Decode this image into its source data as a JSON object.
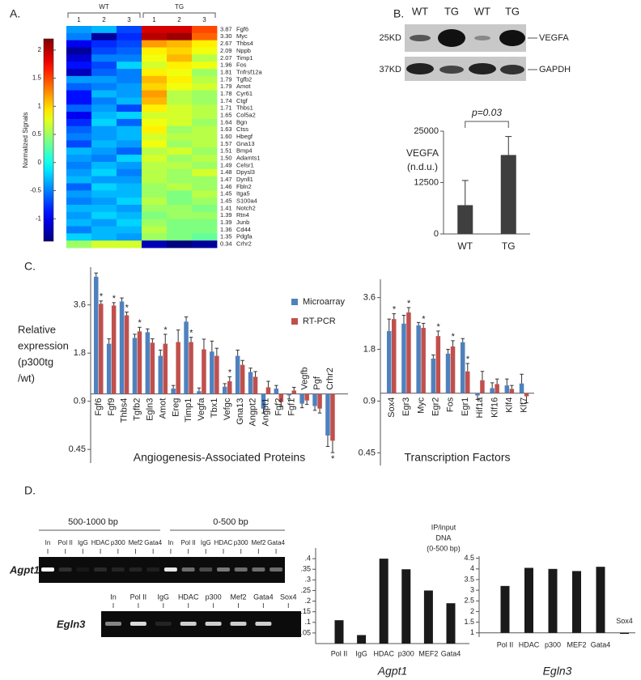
{
  "panel_labels": [
    "A.",
    "B.",
    "C.",
    "D."
  ],
  "heatmap": {
    "groups": [
      "WT",
      "TG"
    ],
    "columns": [
      "1",
      "2",
      "3",
      "1",
      "2",
      "3"
    ],
    "colorbar_label": "Normalized Signals",
    "clim": [
      -1.4,
      2.2
    ],
    "cticks": [
      -1,
      -0.5,
      0,
      0.5,
      1,
      1.5,
      2
    ],
    "colormap": "jet",
    "genes": [
      "Fgf6",
      "Myc",
      "Thbs4",
      "Nppb",
      "Timp1",
      "Fos",
      "Tnfrsf12a",
      "Tgfb2",
      "Amot",
      "Cyr61",
      "Ctgf",
      "Thbs1",
      "Col5a2",
      "Bgn",
      "Ctss",
      "Hbegf",
      "Gna13",
      "Bmp4",
      "Adamts1",
      "Celsr1",
      "Dpysl3",
      "Dynll1",
      "Fbln2",
      "Itga5",
      "S100a4",
      "Notch2",
      "Rtn4",
      "Junb",
      "Cd44",
      "Pdgfa",
      "Crhr2"
    ],
    "fold_changes": [
      "3.87",
      "3.30",
      "2.67",
      "2.09",
      "2.07",
      "1.96",
      "1.81",
      "1.79",
      "1.79",
      "1.78",
      "1.74",
      "1.71",
      "1.65",
      "1.64",
      "1.63",
      "1.60",
      "1.57",
      "1.51",
      "1.50",
      "1.49",
      "1.48",
      "1.47",
      "1.46",
      "1.45",
      "1.45",
      "1.41",
      "1.39",
      "1.39",
      "1.36",
      "1.35",
      "0.34"
    ],
    "values": [
      [
        -0.4,
        -0.3,
        -0.7,
        1.9,
        1.9,
        1.5
      ],
      [
        -0.5,
        -1.3,
        -0.8,
        2.0,
        2.1,
        1.4
      ],
      [
        -1.0,
        -0.8,
        -0.7,
        1.2,
        1.1,
        0.9
      ],
      [
        -1.3,
        -0.7,
        -0.6,
        0.9,
        1.0,
        0.8
      ],
      [
        -1.1,
        -0.5,
        -0.5,
        0.8,
        1.1,
        0.6
      ],
      [
        -0.9,
        -0.7,
        -0.2,
        0.7,
        0.9,
        0.8
      ],
      [
        -1.2,
        -0.6,
        -0.5,
        0.9,
        0.8,
        0.5
      ],
      [
        -0.4,
        -0.4,
        -0.5,
        1.1,
        0.9,
        0.6
      ],
      [
        -0.6,
        -0.5,
        -0.4,
        1.0,
        0.8,
        0.7
      ],
      [
        -0.9,
        -0.3,
        -0.4,
        1.2,
        0.6,
        0.5
      ],
      [
        -0.9,
        -0.5,
        -0.3,
        1.1,
        0.6,
        0.5
      ],
      [
        -0.6,
        -0.4,
        -0.7,
        0.9,
        0.7,
        0.6
      ],
      [
        -1.0,
        -0.3,
        -0.2,
        0.7,
        0.7,
        0.6
      ],
      [
        -0.8,
        -0.2,
        -0.6,
        0.8,
        0.7,
        0.5
      ],
      [
        -0.6,
        -0.4,
        -0.3,
        0.9,
        0.5,
        0.6
      ],
      [
        -0.5,
        -0.4,
        -0.3,
        0.7,
        0.6,
        0.6
      ],
      [
        -0.7,
        -0.3,
        -0.4,
        0.8,
        0.5,
        0.6
      ],
      [
        -0.3,
        -0.4,
        -0.6,
        0.6,
        0.7,
        0.5
      ],
      [
        -0.4,
        -0.5,
        -0.2,
        0.7,
        0.5,
        0.6
      ],
      [
        -0.5,
        -0.3,
        -0.4,
        0.6,
        0.6,
        0.5
      ],
      [
        -0.4,
        -0.2,
        -0.5,
        0.6,
        0.5,
        0.7
      ],
      [
        -0.3,
        -0.4,
        -0.4,
        0.6,
        0.5,
        0.5
      ],
      [
        -0.6,
        -0.2,
        -0.3,
        0.5,
        0.6,
        0.5
      ],
      [
        -0.4,
        -0.3,
        -0.3,
        0.5,
        0.4,
        0.6
      ],
      [
        -0.5,
        -0.4,
        -0.2,
        0.6,
        0.4,
        0.5
      ],
      [
        -0.3,
        -0.3,
        -0.4,
        0.5,
        0.5,
        0.4
      ],
      [
        -0.4,
        -0.2,
        -0.3,
        0.4,
        0.5,
        0.5
      ],
      [
        -0.3,
        -0.4,
        -0.2,
        0.5,
        0.4,
        0.4
      ],
      [
        -0.5,
        -0.3,
        -0.3,
        0.6,
        0.4,
        0.4
      ],
      [
        -0.2,
        -0.3,
        -0.4,
        0.5,
        0.4,
        0.3
      ],
      [
        0.5,
        0.7,
        0.7,
        -1.2,
        -1.4,
        -1.3
      ]
    ]
  },
  "western_blot": {
    "lanes": [
      "WT",
      "TG",
      "WT",
      "TG"
    ],
    "rows": [
      {
        "size": "25KD",
        "protein": "VEGFA"
      },
      {
        "size": "37KD",
        "protein": "GAPDH"
      }
    ]
  },
  "chip_gels": {
    "agpt1": {
      "label": "Agpt1",
      "ranges": [
        "500-1000 bp",
        "0-500 bp"
      ],
      "lanes": [
        "In",
        "Pol II",
        "IgG",
        "HDAC",
        "p300",
        "Mef2",
        "Gata4"
      ]
    },
    "egln3": {
      "label": "Egln3",
      "lanes": [
        "In",
        "Pol II",
        "IgG",
        "HDAC",
        "p300",
        "Mef2",
        "Gata4",
        "Sox4"
      ]
    }
  },
  "chart_data": [
    {
      "type": "bar",
      "y_label": [
        "VEGFA",
        "(n.d.u.)"
      ],
      "categories": [
        "WT",
        "TG"
      ],
      "values": [
        7000,
        19200
      ],
      "errors": [
        6000,
        4500
      ],
      "color": "#3f3f3f",
      "ylim": [
        0,
        25000
      ],
      "yticks": [
        0,
        12500,
        25000
      ],
      "annotation": "p=0.03"
    },
    {
      "type": "bar",
      "log_y": true,
      "y_label": [
        "Relative",
        "expression",
        "(p300tg",
        "/wt)"
      ],
      "x_label": "Angiogenesis-Associated Proteins",
      "legend": "right",
      "categories": [
        "Fgf6",
        "Fgf9",
        "Thbs4",
        "Tgfb2",
        "Egln3",
        "Amot",
        "Ereg",
        "Timp1",
        "Vegfa",
        "Tbx1",
        "Vefgc",
        "Gna13",
        "Angpt2",
        "Angpt1",
        "Fgf2",
        "Fgf1",
        "Vegfb",
        "Pgf",
        "Crhr2"
      ],
      "series": [
        {
          "name": "Microarray",
          "color": "#4f81bd",
          "values": [
            5.4,
            2.06,
            3.78,
            2.24,
            2.43,
            1.73,
            1.08,
            2.83,
            1.04,
            1.84,
            1.11,
            1.73,
            1.37,
            0.81,
            1.08,
            0.98,
            0.87,
            0.84,
            0.55
          ],
          "errors": [
            0.3,
            0.15,
            0.2,
            0.12,
            0.12,
            0.15,
            0.05,
            0.2,
            0.05,
            0.3,
            0.05,
            0.15,
            0.08,
            0.05,
            0.05,
            0.05,
            0.05,
            0.05,
            0.08
          ]
        },
        {
          "name": "RT-PCR",
          "color": "#c0504d",
          "values": [
            3.66,
            3.57,
            3.1,
            2.46,
            2.09,
            2.06,
            2.11,
            2.11,
            1.9,
            1.73,
            1.2,
            1.52,
            1.28,
            1.1,
            0.89,
            1.05,
            0.91,
            0.81,
            0.51
          ],
          "errors": [
            0.15,
            0.15,
            0.15,
            0.15,
            0.12,
            0.3,
            0.4,
            0.15,
            0.3,
            0.2,
            0.08,
            0.1,
            0.1,
            0.1,
            0.05,
            0.05,
            0.05,
            0.05,
            0.08
          ]
        }
      ],
      "significance": [
        "*",
        "*",
        "*",
        "*",
        null,
        "*",
        null,
        "*",
        null,
        null,
        "*",
        null,
        null,
        null,
        null,
        null,
        null,
        null,
        "*"
      ],
      "ylim": [
        0.37,
        6.2
      ],
      "yticks": [
        0.45,
        0.9,
        1.8,
        3.6
      ]
    },
    {
      "type": "bar",
      "log_y": true,
      "x_label": "Transcription Factors",
      "categories": [
        "Sox4",
        "Egr3",
        "Myc",
        "Egr2",
        "Fos",
        "Egr1",
        "Hif1a",
        "Klf16",
        "Klf4",
        "Klf7"
      ],
      "series": [
        {
          "color": "#4f81bd",
          "values": [
            2.3,
            2.54,
            2.48,
            1.59,
            1.7,
            1.98,
            0.97,
            1.07,
            1.11,
            1.14
          ],
          "errors": [
            0.4,
            0.3,
            0.1,
            0.08,
            0.1,
            0.1,
            0.05,
            0.08,
            0.1,
            0.15
          ]
        },
        {
          "color": "#c0504d",
          "values": [
            2.7,
            2.95,
            2.4,
            2.15,
            1.87,
            1.34,
            1.19,
            1.13,
            1.06,
            0.96
          ],
          "errors": [
            0.2,
            0.2,
            0.15,
            0.15,
            0.15,
            0.15,
            0.15,
            0.08,
            0.05,
            0.08
          ]
        }
      ],
      "significance": [
        "*",
        "*",
        "*",
        "*",
        "*",
        "*",
        null,
        null,
        null,
        null
      ],
      "ylim": [
        0.38,
        4.6
      ],
      "yticks": [
        0.45,
        0.9,
        1.8,
        3.6
      ]
    },
    {
      "type": "bar",
      "title": [
        "IP/input",
        "DNA",
        "(0-500 bp)"
      ],
      "x_label": "Agpt1",
      "categories": [
        "Pol II",
        "IgG",
        "HDAC",
        "p300",
        "MEF2",
        "Gata4"
      ],
      "values": [
        0.11,
        0.04,
        0.4,
        0.35,
        0.25,
        0.19
      ],
      "color": "#1a1a1a",
      "ylim": [
        0,
        0.45
      ],
      "yticks": [
        {
          "value": 0.05,
          "label": ".05"
        },
        {
          "value": 0.1,
          "label": ".1"
        },
        {
          "value": 0.15,
          "label": ".15"
        },
        {
          "value": 0.2,
          "label": ".2"
        },
        {
          "value": 0.25,
          "label": ".25"
        },
        {
          "value": 0.3,
          "label": ".3"
        },
        {
          "value": 0.35,
          "label": ".35"
        },
        {
          "value": 0.4,
          "label": ".4"
        }
      ]
    },
    {
      "type": "bar",
      "x_label": "Egln3",
      "categories": [
        "Pol II",
        "HDAC",
        "p300",
        "MEF2",
        "Gata4",
        "Sox4"
      ],
      "values": [
        3.2,
        4.05,
        4.0,
        3.9,
        4.1,
        0.95
      ],
      "color": "#1a1a1a",
      "ylim": [
        0.8,
        4.6
      ],
      "yticks": [
        1,
        1.5,
        2,
        2.5,
        3,
        3.5,
        4,
        4.5
      ]
    }
  ]
}
